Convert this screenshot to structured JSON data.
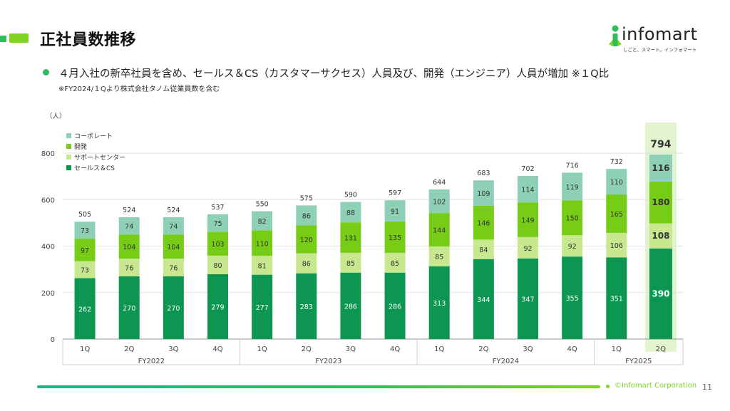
{
  "page": {
    "title": "正社員数推移",
    "bullet": "４月入社の新卒社員を含め、セールス＆CS（カスタマーサクセス）人員及び、開発（エンジニア）人員が増加 ※１Q比",
    "note": "※FY2024/１Qより株式会社タノム従業員数を含む",
    "logo_text": "infomart",
    "logo_tagline": "しごと、スマート。インフォマート",
    "copyright": "©Infomart Corporation",
    "page_number": "11"
  },
  "colors": {
    "sales_cs": "#0c9652",
    "support": "#c7e88e",
    "dev": "#77cc16",
    "corporate": "#8dd0b6",
    "highlight": "#e3f3d0",
    "brand_green": "#2dbd5a",
    "brand_lime": "#7ed321"
  },
  "chart_data": {
    "type": "bar",
    "stacked": true,
    "unit_label": "（人）",
    "ylim": [
      0,
      800
    ],
    "yticks": [
      0,
      200,
      400,
      600,
      800
    ],
    "categories": [
      "1Q",
      "2Q",
      "3Q",
      "4Q",
      "1Q",
      "2Q",
      "3Q",
      "4Q",
      "1Q",
      "2Q",
      "3Q",
      "4Q",
      "1Q",
      "2Q"
    ],
    "fiscal_years": [
      {
        "label": "FY2022",
        "count": 4
      },
      {
        "label": "FY2023",
        "count": 4
      },
      {
        "label": "FY2024",
        "count": 4
      },
      {
        "label": "FY2025",
        "count": 2
      }
    ],
    "series": [
      {
        "name": "セールス＆CS",
        "color_key": "sales_cs",
        "values": [
          262,
          270,
          270,
          279,
          277,
          283,
          286,
          286,
          313,
          344,
          347,
          355,
          351,
          390
        ]
      },
      {
        "name": "サポートセンター",
        "color_key": "support",
        "values": [
          73,
          76,
          76,
          80,
          81,
          86,
          85,
          85,
          85,
          84,
          92,
          92,
          106,
          108
        ]
      },
      {
        "name": "開発",
        "color_key": "dev",
        "values": [
          97,
          104,
          104,
          103,
          110,
          120,
          131,
          135,
          144,
          146,
          149,
          150,
          165,
          180
        ]
      },
      {
        "name": "コーポレート",
        "color_key": "corporate",
        "values": [
          73,
          74,
          74,
          75,
          82,
          86,
          88,
          91,
          102,
          109,
          114,
          119,
          110,
          116
        ]
      }
    ],
    "totals": [
      505,
      524,
      524,
      537,
      550,
      575,
      590,
      597,
      644,
      683,
      702,
      716,
      732,
      794
    ],
    "legend_order": [
      "コーポレート",
      "開発",
      "サポートセンター",
      "セールス＆CS"
    ],
    "legend_position": "top-left",
    "highlight_index": 13
  }
}
